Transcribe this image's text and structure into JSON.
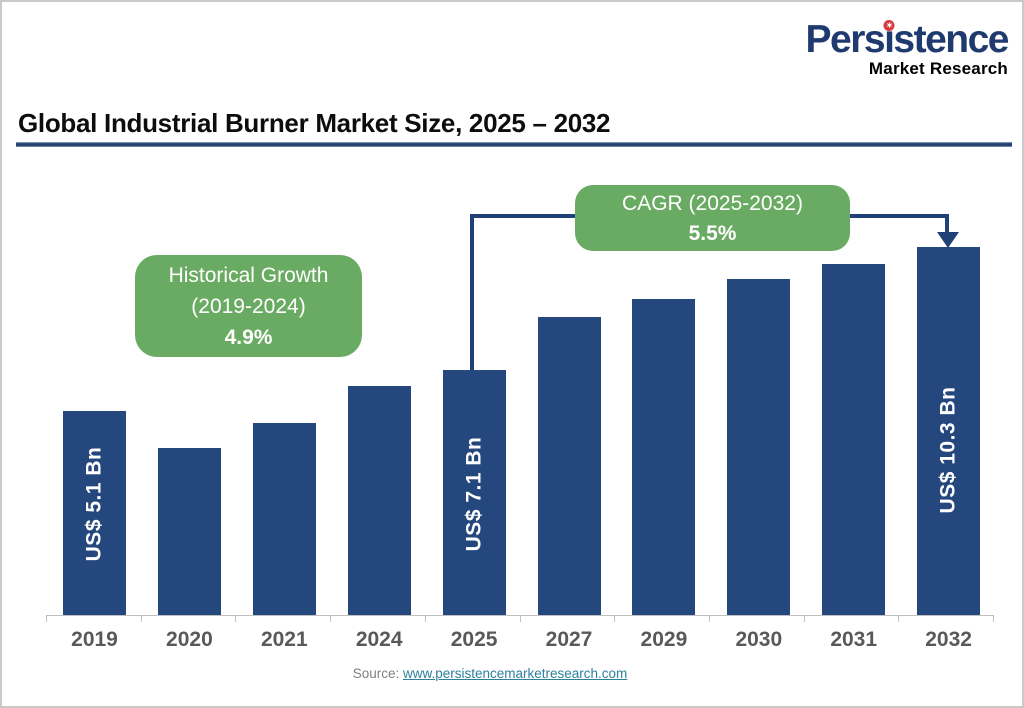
{
  "logo": {
    "line1": "Persistence",
    "parts": {
      "pre": "Pers",
      "i": "ı",
      "post": "stence"
    },
    "line2": "Market Research",
    "brand_color": "#1e3a6e",
    "dot_color": "#d6393e"
  },
  "title": "Global Industrial Burner Market Size, 2025 – 2032",
  "source": {
    "prefix": "Source: ",
    "link": "www.persistencemarketresearch.com"
  },
  "colors": {
    "bar": "#24477e",
    "connector": "#1f4178",
    "callout_green": "#6aab63",
    "axis_gray": "#c0c0c0",
    "year_label": "#595959",
    "title_rule": "#24436e",
    "link": "#2e7f9c"
  },
  "chart_data": {
    "type": "bar",
    "title": "Global Industrial Burner Market Size, 2025 – 2032",
    "unit": "US$ Bn",
    "xlabel": "",
    "ylabel": "",
    "ylim": [
      0,
      11
    ],
    "gridlines": false,
    "legend": false,
    "categories": [
      "2019",
      "2020",
      "2021",
      "2024",
      "2025",
      "2027",
      "2029",
      "2030",
      "2031",
      "2032"
    ],
    "values": [
      5.1,
      4.8,
      5.3,
      6.5,
      7.1,
      7.9,
      8.8,
      9.3,
      9.8,
      10.3
    ],
    "labeled_values": {
      "2019": "US$ 5.1 Bn",
      "2025": "US$ 7.1 Bn",
      "2032": "US$ 10.3 Bn"
    },
    "bars": [
      {
        "year": "2019",
        "value": 5.1,
        "label": "US$ 5.1 Bn",
        "top": 409,
        "label_bottom": 31
      },
      {
        "year": "2020",
        "value": 4.8,
        "label": null,
        "top": 446,
        "label_bottom": null
      },
      {
        "year": "2021",
        "value": 5.3,
        "label": null,
        "top": 421,
        "label_bottom": null
      },
      {
        "year": "2024",
        "value": 6.5,
        "label": null,
        "top": 384,
        "label_bottom": null
      },
      {
        "year": "2025",
        "value": 7.1,
        "label": "US$ 7.1 Bn",
        "top": 368,
        "label_bottom": 41
      },
      {
        "year": "2027",
        "value": 7.9,
        "label": null,
        "top": 315,
        "label_bottom": null
      },
      {
        "year": "2029",
        "value": 8.8,
        "label": null,
        "top": 297,
        "label_bottom": null
      },
      {
        "year": "2030",
        "value": 9.3,
        "label": null,
        "top": 277,
        "label_bottom": null
      },
      {
        "year": "2031",
        "value": 9.8,
        "label": null,
        "top": 262,
        "label_bottom": null
      },
      {
        "year": "2032",
        "value": 10.3,
        "label": "US$ 10.3 Bn",
        "top": 245,
        "label_bottom": 85
      }
    ],
    "annotations": [
      {
        "id": "historical",
        "line1": "Historical Growth",
        "line2": "(2019-2024)",
        "value": "4.9%"
      },
      {
        "id": "cagr",
        "line1": "CAGR (2025-2032)",
        "value": "5.5%"
      }
    ]
  }
}
